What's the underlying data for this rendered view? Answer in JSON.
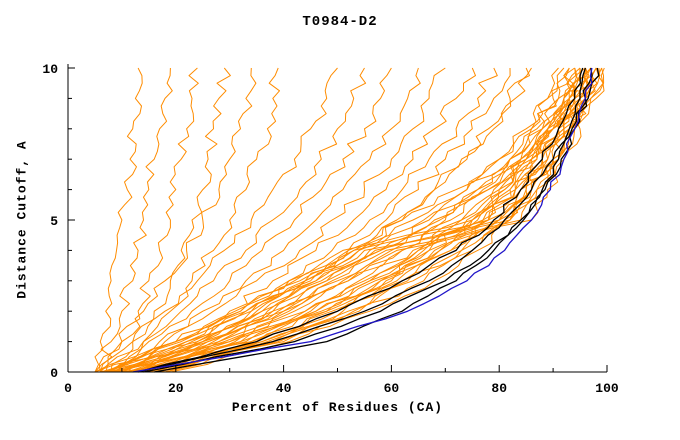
{
  "title": "T0984-D2",
  "chart_data": {
    "type": "line",
    "title": "T0984-D2",
    "xlabel": "Percent of Residues (CA)",
    "ylabel": "Distance Cutoff, A",
    "xlim": [
      0,
      100
    ],
    "ylim": [
      0,
      10
    ],
    "x_major_ticks": [
      0,
      20,
      40,
      60,
      80,
      100
    ],
    "x_minor_ticks": [
      10,
      30,
      50,
      70,
      90
    ],
    "y_major_ticks": [
      0,
      5,
      10
    ],
    "y_minor_ticks": [
      1,
      2,
      3,
      4,
      6,
      7,
      8,
      9
    ],
    "grid": false,
    "legend": "none",
    "y_levels": [
      0,
      1,
      2,
      3,
      4,
      5,
      6,
      7,
      8,
      9,
      10
    ],
    "series_groups": [
      {
        "name": "server-models-orange",
        "color": "#ff8c00",
        "width": 1,
        "jitter": 1.4,
        "curves": [
          [
            5,
            6,
            7,
            8,
            9,
            10,
            11,
            11.5,
            12,
            12.5,
            13
          ],
          [
            6,
            8,
            10,
            12,
            13,
            14,
            15,
            16,
            17,
            18,
            19
          ],
          [
            7,
            10,
            13,
            15,
            17,
            19,
            20,
            21,
            22,
            23,
            24
          ],
          [
            8,
            12,
            16,
            19,
            21,
            23,
            25,
            26,
            27,
            28,
            29
          ],
          [
            6,
            10,
            14,
            18,
            22,
            25,
            28,
            30,
            32,
            33,
            34
          ],
          [
            9,
            14,
            19,
            23,
            27,
            30,
            33,
            35,
            37,
            38,
            39
          ],
          [
            5,
            12,
            18,
            24,
            29,
            34,
            38,
            42,
            45,
            48,
            50
          ],
          [
            6,
            14,
            21,
            27,
            33,
            38,
            43,
            47,
            50,
            53,
            55
          ],
          [
            7,
            15,
            23,
            30,
            36,
            42,
            47,
            51,
            55,
            58,
            60
          ],
          [
            8,
            17,
            25,
            33,
            40,
            46,
            51,
            56,
            60,
            63,
            65
          ],
          [
            9,
            18,
            27,
            35,
            43,
            49,
            55,
            60,
            64,
            67,
            70
          ],
          [
            10,
            20,
            30,
            38,
            46,
            53,
            59,
            64,
            68,
            72,
            75
          ],
          [
            11,
            22,
            32,
            41,
            49,
            56,
            62,
            67,
            72,
            76,
            79
          ],
          [
            12,
            24,
            34,
            44,
            52,
            59,
            65,
            70,
            75,
            79,
            82
          ],
          [
            13,
            25,
            36,
            46,
            54,
            62,
            68,
            73,
            78,
            82,
            85
          ],
          [
            7,
            20,
            33,
            44,
            53,
            61,
            68,
            74,
            79,
            83,
            86
          ],
          [
            5,
            25,
            40,
            52,
            62,
            70,
            77,
            82,
            86,
            89,
            91
          ],
          [
            6,
            28,
            44,
            56,
            65,
            73,
            79,
            84,
            88,
            91,
            93
          ],
          [
            7,
            30,
            46,
            58,
            67,
            75,
            81,
            86,
            89,
            92,
            94
          ],
          [
            8,
            32,
            48,
            60,
            69,
            77,
            83,
            87,
            90,
            93,
            95
          ],
          [
            9,
            34,
            50,
            62,
            71,
            78,
            84,
            88,
            91,
            94,
            96
          ],
          [
            10,
            36,
            52,
            64,
            73,
            80,
            85,
            89,
            92,
            95,
            97
          ],
          [
            11,
            38,
            54,
            66,
            75,
            81,
            86,
            90,
            93,
            96,
            98
          ],
          [
            12,
            40,
            56,
            68,
            76,
            82,
            87,
            91,
            94,
            96,
            98.5
          ],
          [
            13,
            26,
            38,
            48,
            58,
            67,
            74,
            80,
            85,
            89,
            92
          ],
          [
            14,
            28,
            40,
            50,
            60,
            69,
            76,
            82,
            87,
            90,
            93
          ],
          [
            15,
            30,
            42,
            52,
            62,
            71,
            78,
            84,
            88,
            92,
            94
          ],
          [
            16,
            32,
            44,
            54,
            64,
            73,
            80,
            85,
            89,
            93,
            95
          ],
          [
            17,
            34,
            46,
            56,
            66,
            75,
            82,
            87,
            91,
            94,
            96
          ],
          [
            18,
            36,
            48,
            58,
            68,
            77,
            83,
            88,
            92,
            95,
            97
          ],
          [
            5,
            20,
            32,
            42,
            52,
            62,
            72,
            80,
            86,
            91,
            94
          ],
          [
            6,
            22,
            34,
            44,
            54,
            64,
            74,
            82,
            88,
            92,
            95
          ],
          [
            7,
            24,
            36,
            46,
            56,
            66,
            76,
            84,
            89,
            93,
            96
          ],
          [
            8,
            26,
            38,
            48,
            58,
            68,
            78,
            85,
            90,
            94,
            97
          ],
          [
            9,
            21,
            31,
            41,
            51,
            75,
            80,
            85,
            89,
            93,
            95
          ],
          [
            10,
            23,
            33,
            43,
            53,
            78,
            82,
            86,
            90,
            94,
            96
          ],
          [
            11,
            25,
            35,
            45,
            55,
            80,
            84,
            88,
            91,
            95,
            97
          ],
          [
            12,
            27,
            37,
            47,
            57,
            82,
            86,
            89,
            92,
            95,
            98
          ],
          [
            13,
            29,
            39,
            49,
            59,
            84,
            87,
            90,
            93,
            96,
            98
          ],
          [
            14,
            31,
            41,
            51,
            61,
            86,
            89,
            91,
            94,
            97,
            99
          ],
          [
            15,
            33,
            45,
            55,
            65,
            74,
            81,
            86,
            90,
            94,
            96
          ],
          [
            16,
            35,
            47,
            57,
            67,
            76,
            83,
            88,
            92,
            95,
            97
          ],
          [
            17,
            37,
            49,
            59,
            69,
            78,
            85,
            90,
            93,
            96,
            98
          ],
          [
            18,
            39,
            51,
            61,
            71,
            80,
            86,
            91,
            94,
            97,
            99
          ],
          [
            19,
            41,
            53,
            63,
            73,
            82,
            88,
            92,
            95,
            98,
            99.5
          ]
        ]
      },
      {
        "name": "selected-models-black",
        "color": "#000000",
        "width": 1.3,
        "jitter": 0.7,
        "curves": [
          [
            13,
            38,
            55,
            67,
            75,
            81,
            86,
            90,
            93.5,
            96.5,
            98.2
          ],
          [
            14,
            42,
            58,
            70,
            78,
            84,
            88,
            91,
            93,
            95,
            96
          ],
          [
            16,
            48,
            62,
            72,
            79,
            84.5,
            88.5,
            91.5,
            94,
            96,
            97
          ],
          [
            13,
            35,
            50,
            62,
            72,
            79,
            84,
            88,
            91,
            94,
            95.5
          ]
        ]
      },
      {
        "name": "best-model-blue",
        "color": "#2015c8",
        "width": 1.3,
        "jitter": 0.6,
        "curves": [
          [
            12,
            45,
            63,
            74,
            81,
            86,
            89.5,
            92,
            94,
            96,
            97.2
          ]
        ]
      }
    ]
  }
}
